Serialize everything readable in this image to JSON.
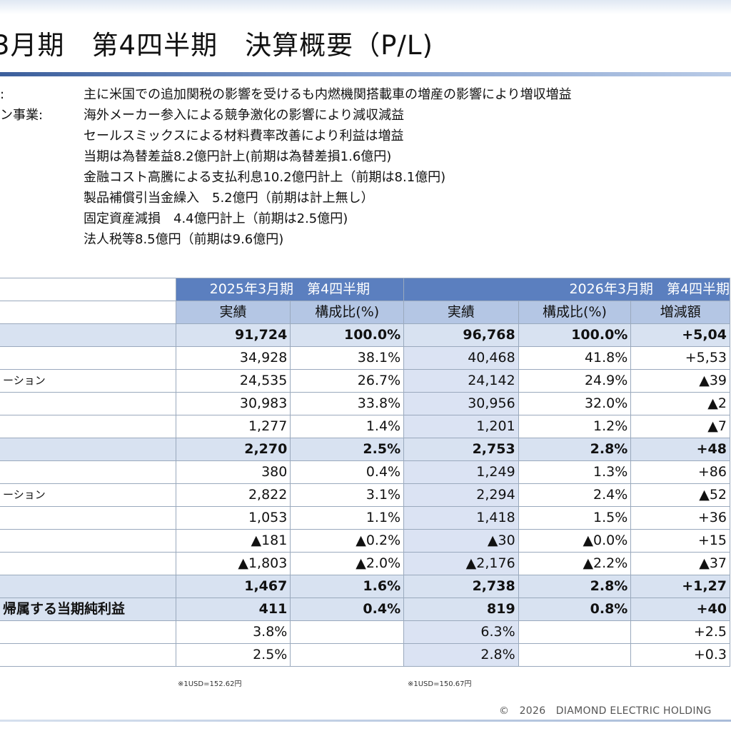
{
  "header": {
    "title": "3月期　第4四半期　決算概要（P/L)"
  },
  "notes": [
    {
      "label": "",
      "text": "主に米国での追加関税の影響を受けるも内燃機関搭載車の増産の影響により増収増益"
    },
    {
      "label": "ション事業:",
      "text": "海外メーカー参入による競争激化の影響により減収減益"
    },
    {
      "label": "",
      "text": "セールスミックスによる材料費率改善により利益は増益"
    },
    {
      "label": "",
      "text": "当期は為替差益8.2億円計上(前期は為替差損1.6億円)"
    },
    {
      "label": "",
      "text": "金融コスト高騰による支払利息10.2億円計上（前期は8.1億円)"
    },
    {
      "label": "",
      "text": "製品補償引当金繰入　5.2億円（前期は計上無し）"
    },
    {
      "label": "",
      "text": "固定資産減損　4.4億円計上（前期は2.5億円)"
    },
    {
      "label": "",
      "text": "法人税等8.5億円（前期は9.6億円)"
    }
  ],
  "table": {
    "period_a": "2025年3月期　第4四半期",
    "period_b": "2026年3月期　第4四半期",
    "col_actual": "実績",
    "col_ratio": "構成比(%)",
    "col_diff": "増減額",
    "rows": [
      {
        "label": "",
        "a": "91,724",
        "ar": "100.0%",
        "b": "96,768",
        "br": "100.0%",
        "d": "+5,04",
        "band": true
      },
      {
        "label": "",
        "a": "34,928",
        "ar": "38.1%",
        "b": "40,468",
        "br": "41.8%",
        "d": "+5,53",
        "band": false
      },
      {
        "label": "ーション",
        "a": "24,535",
        "ar": "26.7%",
        "b": "24,142",
        "br": "24.9%",
        "d": "▲39",
        "band": false
      },
      {
        "label": "",
        "a": "30,983",
        "ar": "33.8%",
        "b": "30,956",
        "br": "32.0%",
        "d": "▲2",
        "band": false
      },
      {
        "label": "",
        "a": "1,277",
        "ar": "1.4%",
        "b": "1,201",
        "br": "1.2%",
        "d": "▲7",
        "band": false
      },
      {
        "label": "",
        "a": "2,270",
        "ar": "2.5%",
        "b": "2,753",
        "br": "2.8%",
        "d": "+48",
        "band": true
      },
      {
        "label": "",
        "a": "380",
        "ar": "0.4%",
        "b": "1,249",
        "br": "1.3%",
        "d": "+86",
        "band": false
      },
      {
        "label": "ーション",
        "a": "2,822",
        "ar": "3.1%",
        "b": "2,294",
        "br": "2.4%",
        "d": "▲52",
        "band": false
      },
      {
        "label": "",
        "a": "1,053",
        "ar": "1.1%",
        "b": "1,418",
        "br": "1.5%",
        "d": "+36",
        "band": false
      },
      {
        "label": "",
        "a": "▲181",
        "ar": "▲0.2%",
        "b": "▲30",
        "br": "▲0.0%",
        "d": "+15",
        "band": false
      },
      {
        "label": "",
        "a": "▲1,803",
        "ar": "▲2.0%",
        "b": "▲2,176",
        "br": "▲2.2%",
        "d": "▲37",
        "band": false
      },
      {
        "label": "",
        "a": "1,467",
        "ar": "1.6%",
        "b": "2,738",
        "br": "2.8%",
        "d": "+1,27",
        "band": true
      },
      {
        "label": "帰属する当期純利益",
        "a": "411",
        "ar": "0.4%",
        "b": "819",
        "br": "0.8%",
        "d": "+40",
        "band": true
      },
      {
        "label": "",
        "a": "3.8%",
        "ar": "",
        "b": "6.3%",
        "br": "",
        "d": "+2.5",
        "band": false
      },
      {
        "label": "",
        "a": "2.5%",
        "ar": "",
        "b": "2.8%",
        "br": "",
        "d": "+0.3",
        "band": false
      }
    ]
  },
  "footnotes": {
    "rate_a": "※1USD=152.62円",
    "rate_b": "※1USD=150.67円"
  },
  "footer": {
    "copyright": "©　2026　DIAMOND ELECTRIC HOLDING"
  }
}
